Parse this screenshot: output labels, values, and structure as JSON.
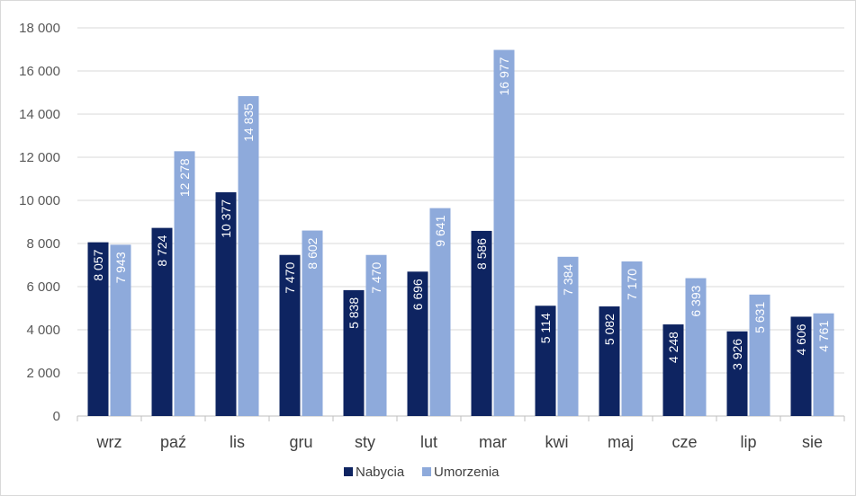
{
  "chart_data": {
    "type": "bar",
    "categories": [
      "wrz",
      "paź",
      "lis",
      "gru",
      "sty",
      "lut",
      "mar",
      "kwi",
      "maj",
      "cze",
      "lip",
      "sie"
    ],
    "series": [
      {
        "name": "Nabycia",
        "color": "#0e2461",
        "values": [
          8057,
          8724,
          10377,
          7470,
          5838,
          6696,
          8586,
          5114,
          5082,
          4248,
          3926,
          4606
        ],
        "labels": [
          "8 057",
          "8 724",
          "10 377",
          "7 470",
          "5 838",
          "6 696",
          "8 586",
          "5 114",
          "5 082",
          "4 248",
          "3 926",
          "4 606"
        ]
      },
      {
        "name": "Umorzenia",
        "color": "#8eaadb",
        "values": [
          7943,
          12278,
          14835,
          8602,
          7470,
          9641,
          16977,
          7384,
          7170,
          6393,
          5631,
          4761
        ],
        "labels": [
          "7 943",
          "12 278",
          "14 835",
          "8 602",
          "7 470",
          "9 641",
          "16 977",
          "7 384",
          "7 170",
          "6 393",
          "5 631",
          "4 761"
        ]
      }
    ],
    "title": "",
    "xlabel": "",
    "ylabel": "",
    "ylim": [
      0,
      18000
    ],
    "yticks": [
      0,
      2000,
      4000,
      6000,
      8000,
      10000,
      12000,
      14000,
      16000,
      18000
    ],
    "ytick_labels": [
      "0",
      "2 000",
      "4 000",
      "6 000",
      "8 000",
      "10 000",
      "12 000",
      "14 000",
      "16 000",
      "18 000"
    ],
    "grid": true,
    "legend": "bottom-center"
  }
}
